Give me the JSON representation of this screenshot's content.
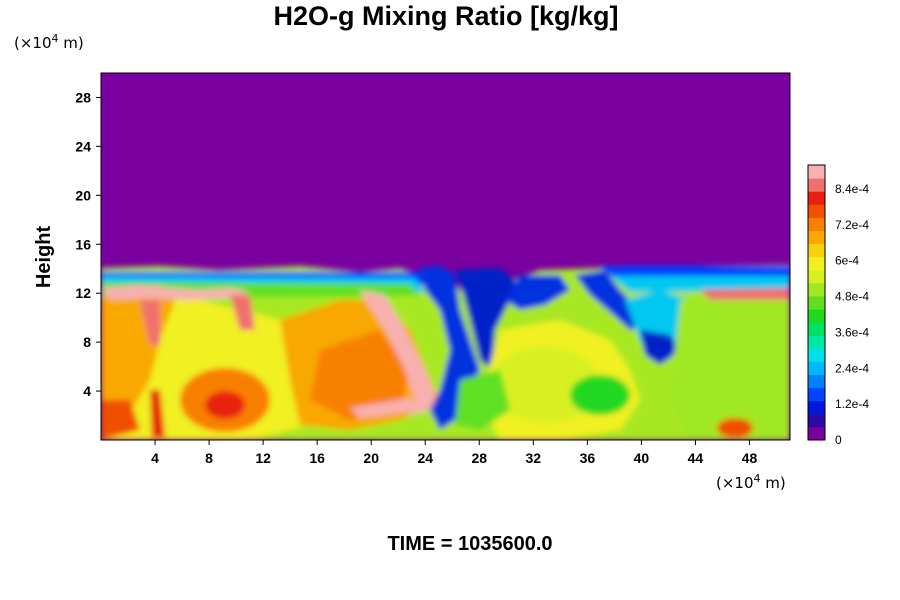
{
  "chart_data": {
    "type": "heatmap",
    "title": "H2O-g Mixing Ratio [kg/kg]",
    "ylabel": "Height",
    "x_unit_label": "(×10",
    "x_unit_exp": "4",
    "x_unit_suffix": " m)",
    "y_unit_label": "(×10",
    "y_unit_exp": "4",
    "y_unit_suffix": " m)",
    "xlim": [
      0,
      51
    ],
    "ylim": [
      0,
      30
    ],
    "x_ticks": [
      4,
      8,
      12,
      16,
      20,
      24,
      28,
      32,
      36,
      40,
      44,
      48
    ],
    "y_ticks": [
      4,
      8,
      12,
      16,
      20,
      24,
      28
    ],
    "colorbar": {
      "min": 0,
      "max": 0.00092,
      "tick_values": [
        0,
        0.00012,
        0.00024,
        0.00036,
        0.00048,
        0.0006,
        0.00072,
        0.00084
      ],
      "tick_labels": [
        "0",
        "1.2e-4",
        "2.4e-4",
        "3.6e-4",
        "4.8e-4",
        "6e-4",
        "7.2e-4",
        "8.4e-4"
      ],
      "colors": [
        "#7a00a0",
        "#2a0aa8",
        "#0019d8",
        "#0046ff",
        "#0080ff",
        "#00b8ff",
        "#00e0e8",
        "#00e8a8",
        "#00e060",
        "#20d820",
        "#60e020",
        "#a0e820",
        "#d8f020",
        "#f0f020",
        "#f8d010",
        "#f8a800",
        "#f88000",
        "#f05000",
        "#e82010",
        "#f07070",
        "#f8b0b0"
      ]
    },
    "time_text": "TIME = 1035600.0"
  }
}
